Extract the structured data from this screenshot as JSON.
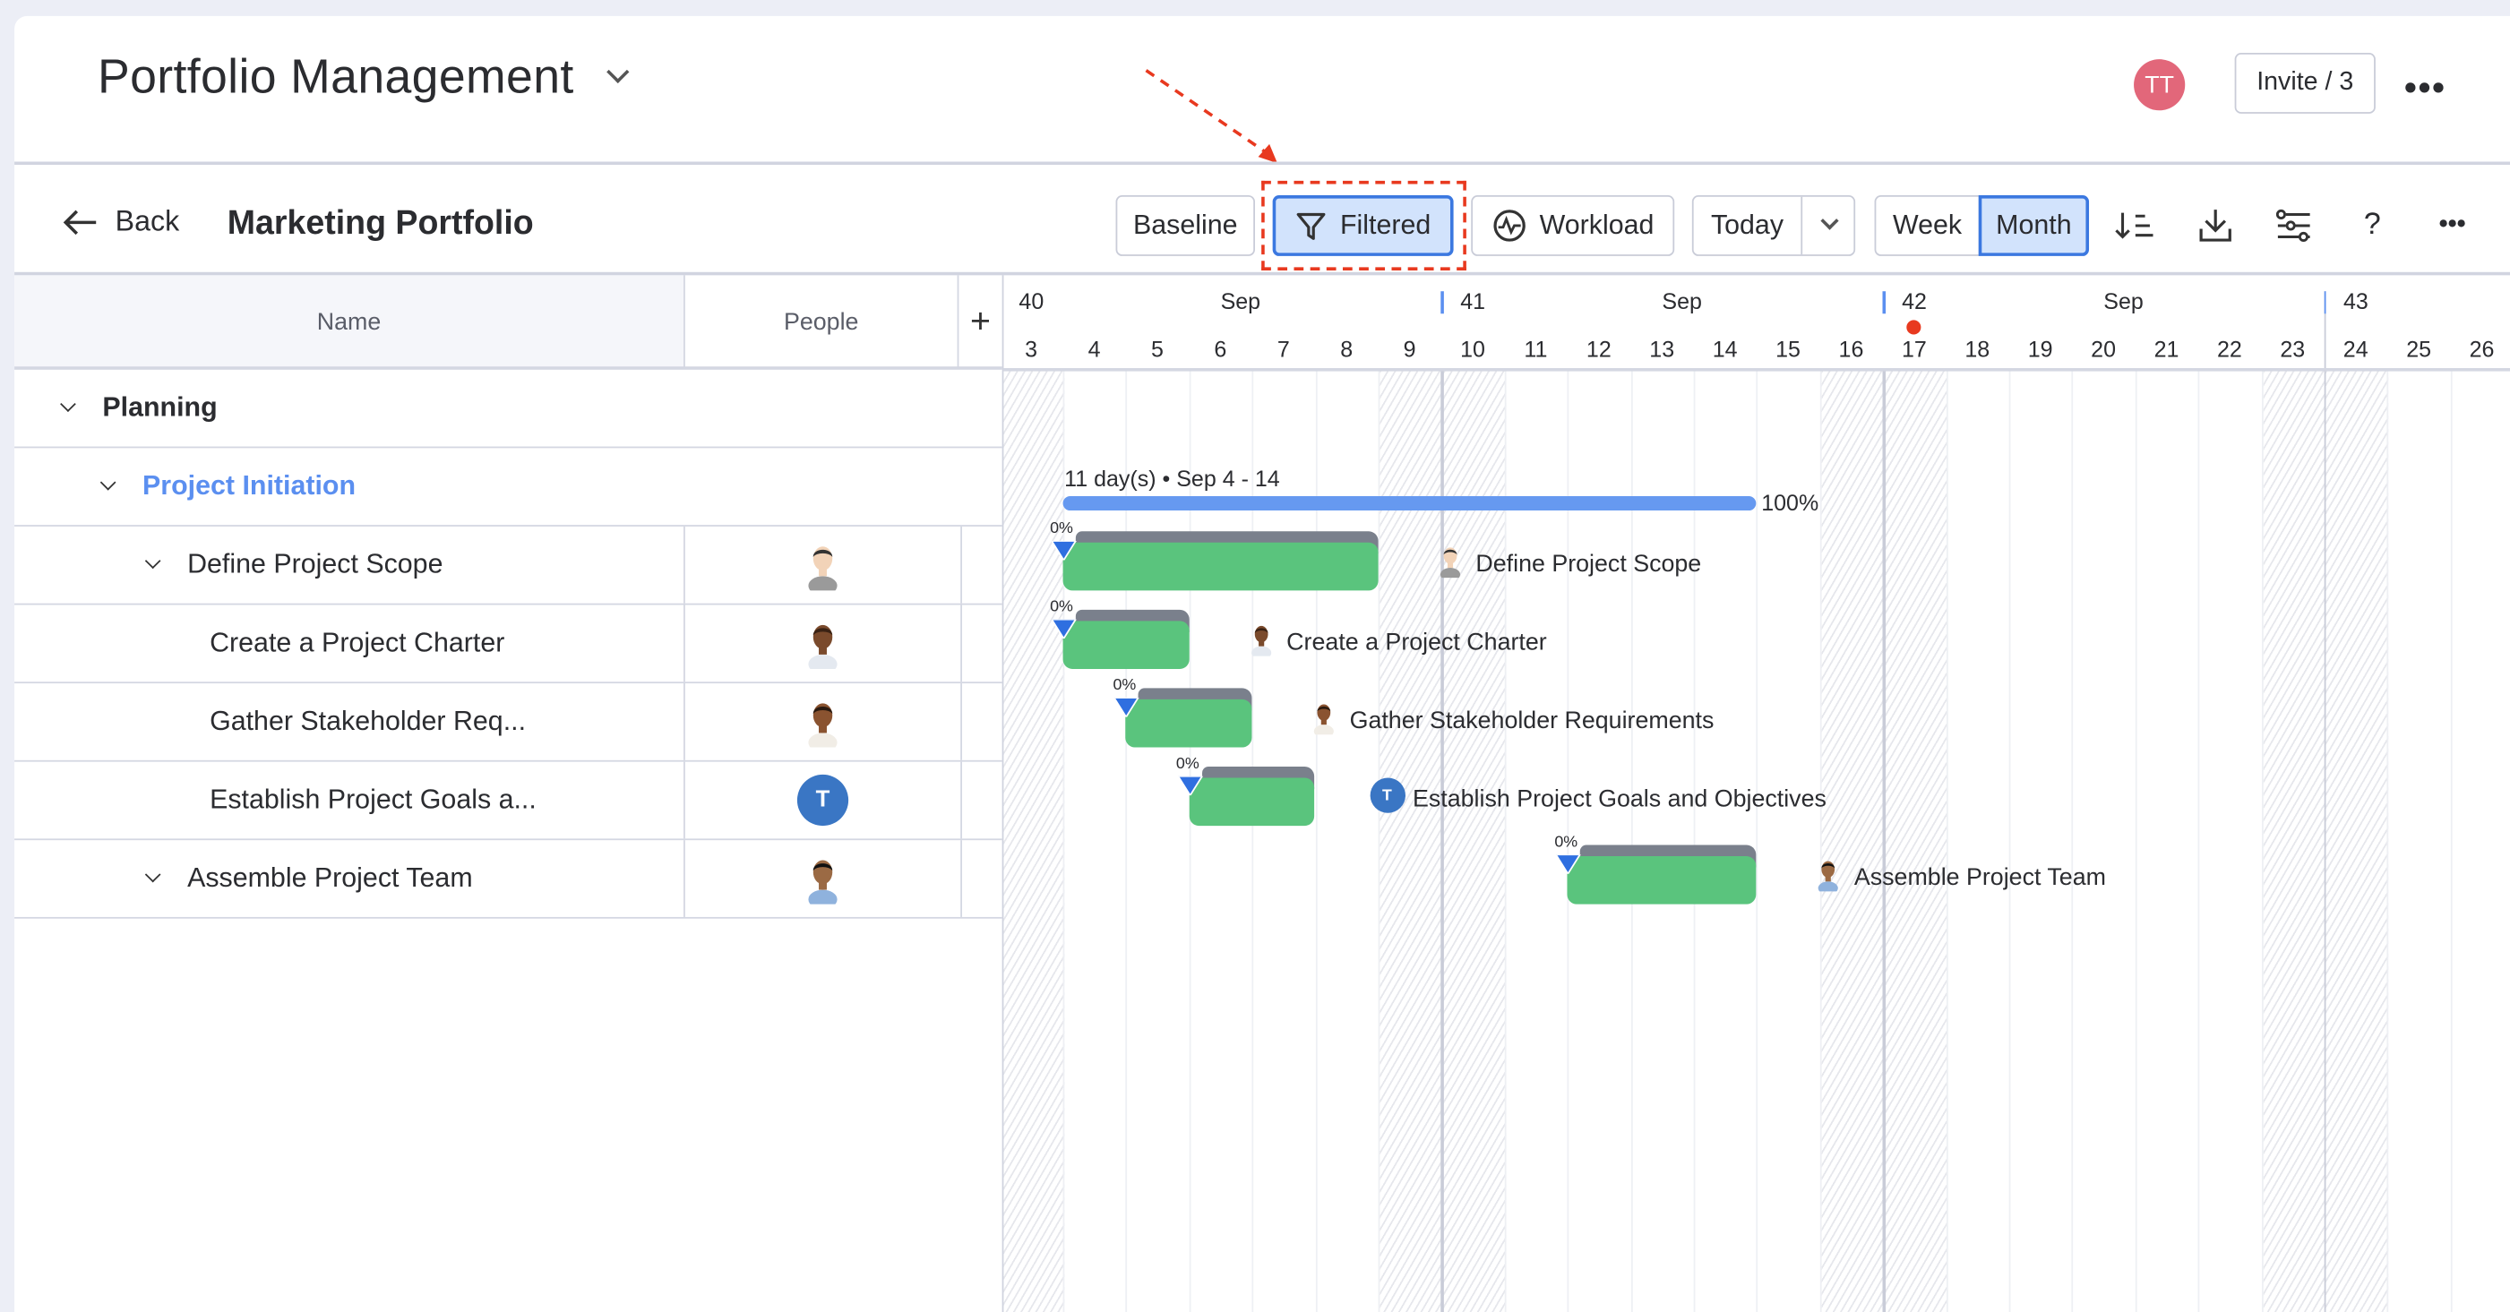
{
  "header": {
    "title": "Portfolio Management",
    "user_initials": "TT",
    "user_color": "#e2677a",
    "invite_label": "Invite / 3"
  },
  "toolbar": {
    "back_label": "Back",
    "portfolio_title": "Marketing Portfolio",
    "baseline_label": "Baseline",
    "filtered_label": "Filtered",
    "workload_label": "Workload",
    "today_label": "Today",
    "week_label": "Week",
    "month_label": "Month",
    "active_scale": "Month",
    "filter_active": true,
    "icons": [
      "sort-icon",
      "download-icon",
      "settings-sliders-icon",
      "help-icon",
      "more-icon"
    ]
  },
  "annotation": {
    "highlight": "Filtered",
    "color": "#e8391f"
  },
  "table": {
    "col_name": "Name",
    "col_people": "People",
    "add_column": "+",
    "rows": [
      {
        "name": "Planning",
        "level": 0,
        "type": "group"
      },
      {
        "name": "Project Initiation",
        "level": 1,
        "type": "group"
      },
      {
        "name": "Define Project Scope",
        "level": 2,
        "type": "task",
        "expandable": true,
        "avatar": "photo"
      },
      {
        "name": "Create a Project Charter",
        "level": 3,
        "type": "task",
        "avatar": "photo"
      },
      {
        "name": "Gather Stakeholder Req...",
        "level": 3,
        "type": "task",
        "avatar": "photo"
      },
      {
        "name": "Establish Project Goals a...",
        "level": 3,
        "type": "task",
        "avatar": "initial",
        "initial": "T"
      },
      {
        "name": "Assemble Project Team",
        "level": 2,
        "type": "task",
        "expandable": true,
        "avatar": "photo"
      }
    ]
  },
  "timeline": {
    "weeks": [
      {
        "num": "40",
        "month": "Sep"
      },
      {
        "num": "41",
        "month": "Sep"
      },
      {
        "num": "42",
        "month": "Sep"
      },
      {
        "num": "43",
        "month": ""
      }
    ],
    "days": [
      "3",
      "4",
      "5",
      "6",
      "7",
      "8",
      "9",
      "10",
      "11",
      "12",
      "13",
      "14",
      "15",
      "16",
      "17",
      "18",
      "19",
      "20",
      "21",
      "22",
      "23",
      "24",
      "25",
      "26"
    ],
    "weekend_days": [
      3,
      9,
      10,
      16,
      17,
      23,
      24
    ],
    "today": 17
  },
  "chart_data": {
    "type": "gantt",
    "summary": {
      "label": "11 day(s) • Sep 4 - 14",
      "start": 4,
      "end": 14,
      "progress": "100%",
      "color": "#6699f0"
    },
    "tasks": [
      {
        "name": "Define Project Scope",
        "start": 4,
        "end": 8,
        "progress": "0%",
        "avatar": "photo"
      },
      {
        "name": "Create a Project Charter",
        "start": 4,
        "end": 5,
        "progress": "0%",
        "avatar": "photo"
      },
      {
        "name": "Gather Stakeholder Requirements",
        "start": 5,
        "end": 6,
        "progress": "0%",
        "avatar": "photo"
      },
      {
        "name": "Establish Project Goals and Objectives",
        "start": 6,
        "end": 7,
        "progress": "0%",
        "avatar": "initial",
        "initial": "T"
      },
      {
        "name": "Assemble Project Team",
        "start": 12,
        "end": 14,
        "progress": "0%",
        "avatar": "photo"
      }
    ],
    "colors": {
      "bar": "#5ac47d",
      "baseline": "#7a808c",
      "marker": "#2f6fe0",
      "avatar_initial": "#3a76c4"
    }
  }
}
